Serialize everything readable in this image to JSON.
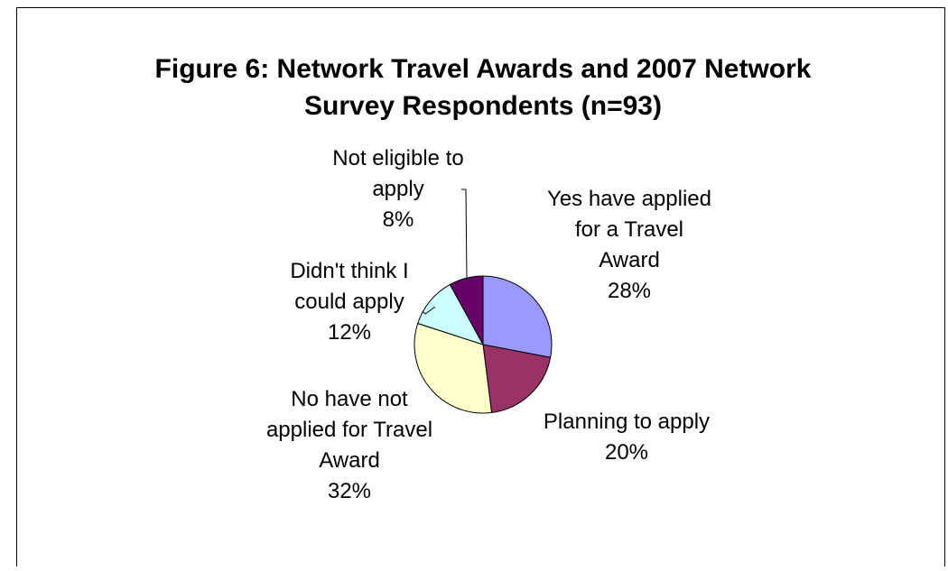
{
  "chart_data": {
    "type": "pie",
    "title": [
      "Figure 6: Network Travel Awards and 2007 Network",
      "Survey Respondents (n=93)"
    ],
    "slices": [
      {
        "label": [
          "Yes have applied",
          "for a Travel",
          "Award"
        ],
        "pct_label": "28%",
        "value": 28,
        "color": "#9999ff"
      },
      {
        "label": [
          "Planning to apply"
        ],
        "pct_label": "20%",
        "value": 20,
        "color": "#993366"
      },
      {
        "label": [
          "No have not",
          "applied for Travel",
          "Award"
        ],
        "pct_label": "32%",
        "value": 32,
        "color": "#ffffcc"
      },
      {
        "label": [
          "Didn't think I",
          "could apply"
        ],
        "pct_label": "12%",
        "value": 12,
        "color": "#ccffff"
      },
      {
        "label": [
          "Not eligible to",
          "apply"
        ],
        "pct_label": "8%",
        "value": 8,
        "color": "#660066"
      }
    ]
  }
}
